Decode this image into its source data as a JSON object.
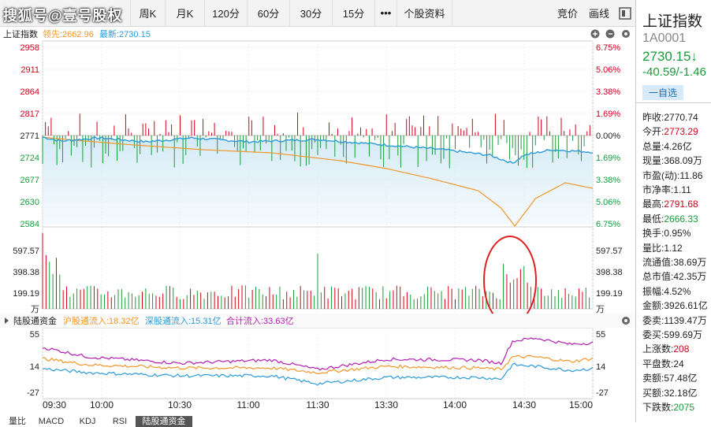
{
  "watermark": "搜狐号@壹号股权",
  "toolbar": {
    "week": "周K",
    "month": "月K",
    "m120": "120分",
    "m60": "60分",
    "m30": "30分",
    "m15": "15分",
    "more": "•••",
    "info": "个股资料",
    "auction": "竞价",
    "draw": "画线"
  },
  "chart": {
    "name": "上证指数",
    "lead_label": "领先:2662.96",
    "latest_label": "最新:2730.15",
    "price_ticks": [
      "2958",
      "2911",
      "2864",
      "2817",
      "2771",
      "2724",
      "2677",
      "2630",
      "2584"
    ],
    "pct_ticks": [
      "6.75%",
      "5.06%",
      "3.38%",
      "1.69%",
      "0.00%",
      "1.69%",
      "3.38%",
      "5.06%",
      "6.75%"
    ],
    "vol_ticks": [
      "597.57",
      "398.38",
      "199.19",
      "万"
    ],
    "flow_title": "陆股通资金",
    "sh_flow": "沪股通流入:18.32亿",
    "sz_flow": "深股通流入:15.31亿",
    "total_flow": "合计流入:33.63亿",
    "flow_ticks": [
      "55",
      "14",
      "-27"
    ],
    "time_ticks": [
      "09:30",
      "10:00",
      "10:30",
      "11:00",
      "11:30",
      "13:30",
      "14:00",
      "14:30",
      "15:00"
    ]
  },
  "bottom_tabs": [
    "量比",
    "MACD",
    "KDJ",
    "RSI",
    "陆股通资金"
  ],
  "quote": {
    "title": "上证指数",
    "code": "1A0001",
    "price": "2730.15↓",
    "change": "-40.59/-1.46",
    "watch": "一自选",
    "rows": [
      {
        "k": "昨收:",
        "v": "2770.74",
        "c": ""
      },
      {
        "k": "今开:",
        "v": "2773.29",
        "c": "up"
      },
      {
        "k": "总量:",
        "v": "4.26亿",
        "c": ""
      },
      {
        "k": "现量:",
        "v": "368.09万",
        "c": ""
      },
      {
        "k": "市盈(动):",
        "v": "11.86",
        "c": ""
      },
      {
        "k": "市净率:",
        "v": "1.11",
        "c": ""
      },
      {
        "k": "最高:",
        "v": "2791.68",
        "c": "up"
      },
      {
        "k": "最低:",
        "v": "2666.33",
        "c": "dn"
      },
      {
        "k": "换手:",
        "v": "0.95%",
        "c": ""
      },
      {
        "k": "量比:",
        "v": "1.12",
        "c": ""
      },
      {
        "k": "流通值:",
        "v": "38.69万",
        "c": ""
      },
      {
        "k": "总市值:",
        "v": "42.35万",
        "c": ""
      },
      {
        "k": "振幅:",
        "v": "4.52%",
        "c": ""
      },
      {
        "k": "金额:",
        "v": "3926.61亿",
        "c": ""
      },
      {
        "k": "委卖:",
        "v": "1139.47万",
        "c": ""
      },
      {
        "k": "委买:",
        "v": "599.69万",
        "c": ""
      },
      {
        "k": "上涨数:",
        "v": "208",
        "c": "up"
      },
      {
        "k": "平盘数:",
        "v": "24",
        "c": ""
      },
      {
        "k": "卖额:",
        "v": "57.48亿",
        "c": ""
      },
      {
        "k": "买额:",
        "v": "32.18亿",
        "c": ""
      },
      {
        "k": "下跌数:",
        "v": "2075",
        "c": "dn"
      }
    ]
  },
  "colors": {
    "up": "#d0021b",
    "down": "#1a9b3a",
    "price": "#2a9ad8",
    "avg": "#f0962a",
    "total": "#b11db1",
    "circle": "#e02020"
  }
}
